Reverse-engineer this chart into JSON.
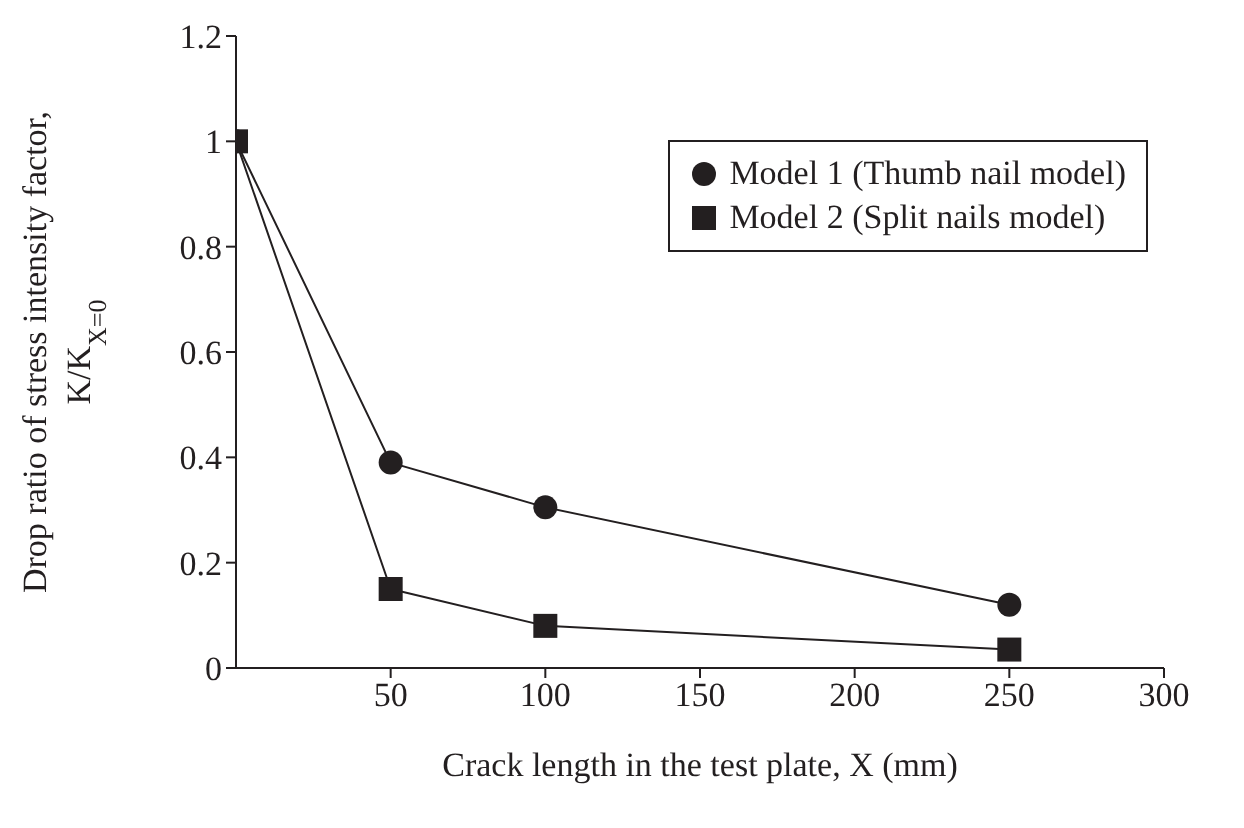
{
  "chart_data": {
    "type": "line",
    "xlabel": "Crack length in the test plate, X (mm)",
    "ylabel": "Drop ratio of stress intensity factor, K/K$_{X=0}$",
    "x": [
      0,
      50,
      100,
      250
    ],
    "series": [
      {
        "name": "Model 1 (Thumb nail model)",
        "color": "#231f20",
        "marker": "circle",
        "values": [
          1,
          0.39,
          0.305,
          0.12
        ]
      },
      {
        "name": "Model 2 (Split nails model)",
        "color": "#231f20",
        "marker": "square",
        "values": [
          1,
          0.15,
          0.08,
          0.035
        ]
      }
    ],
    "xlim": [
      0,
      300
    ],
    "xticks": [
      50,
      100,
      150,
      200,
      250,
      300
    ],
    "ylim": [
      0,
      1.2
    ],
    "yticks": [
      0,
      0.2,
      0.4,
      0.6,
      0.8,
      1,
      1.2
    ],
    "grid": false,
    "legend": "top right"
  }
}
